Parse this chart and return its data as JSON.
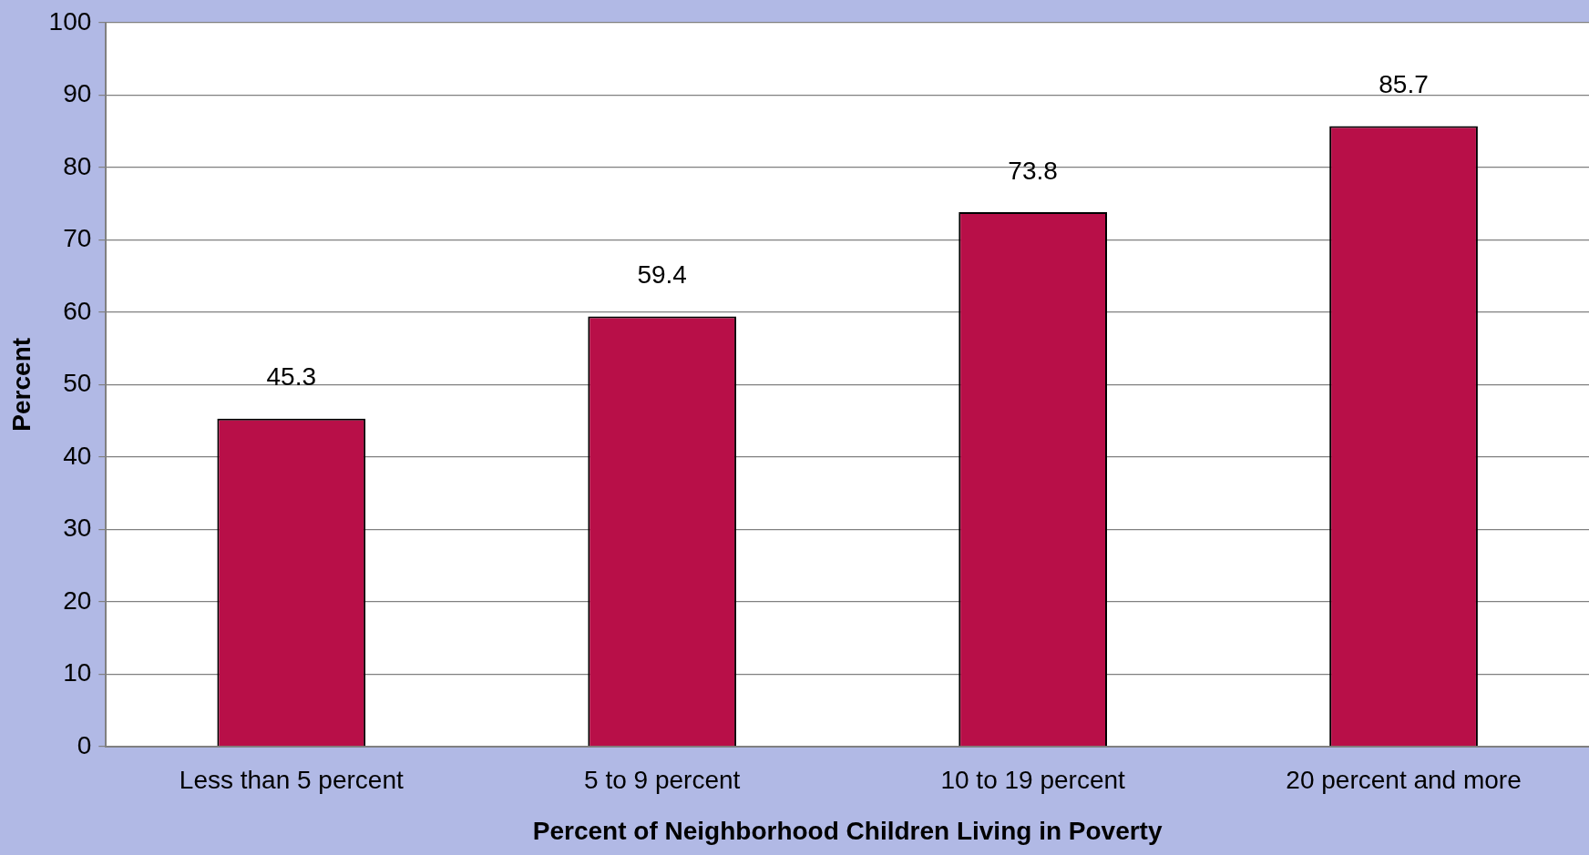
{
  "chart_data": {
    "type": "bar",
    "xlabel": "Percent of Neighborhood Children Living in Poverty",
    "ylabel": "Percent",
    "categories": [
      "Less than 5 percent",
      "5 to 9 percent",
      "10 to 19 percent",
      "20 percent and more"
    ],
    "values": [
      45.3,
      59.4,
      73.8,
      85.7
    ],
    "color": "#b80f48",
    "ylim": [
      0,
      100
    ],
    "yticks": [
      0,
      10,
      20,
      30,
      40,
      50,
      60,
      70,
      80,
      90,
      100
    ],
    "grid": "y",
    "legend": false,
    "data_labels": true
  }
}
